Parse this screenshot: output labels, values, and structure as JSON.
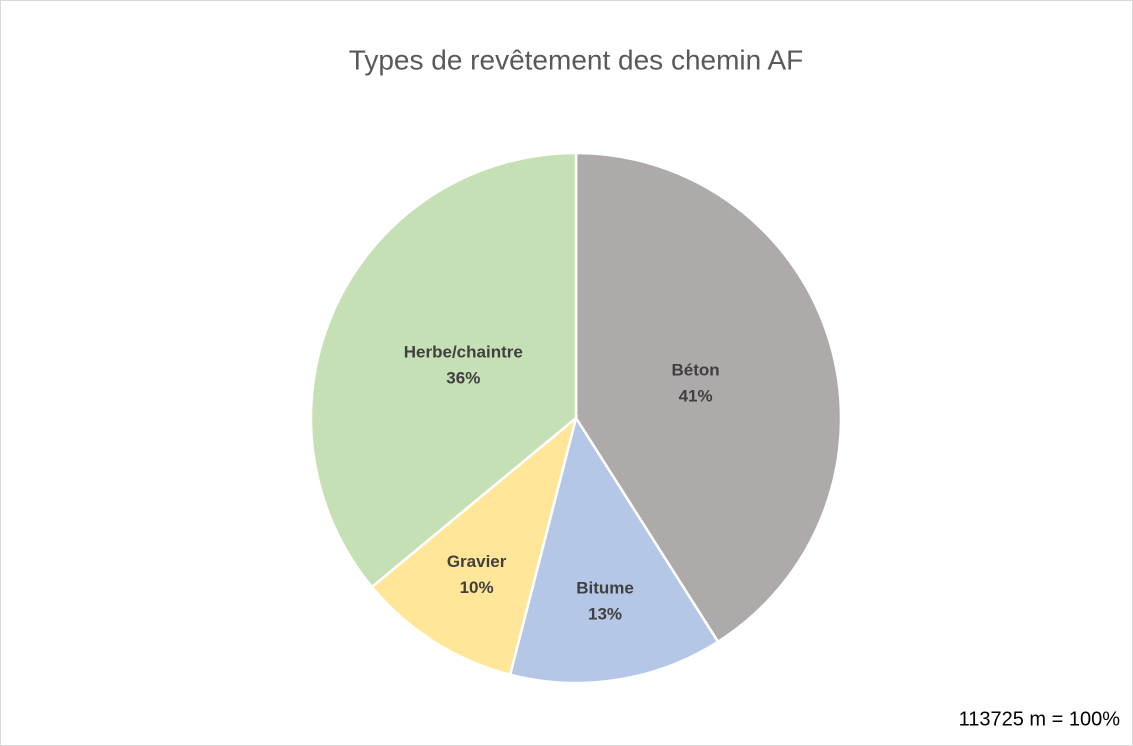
{
  "chart_data": {
    "type": "pie",
    "title": "Types de revêtement des chemin AF",
    "categories": [
      "Béton",
      "Bitume",
      "Gravier",
      "Herbe/chaintre"
    ],
    "values": [
      41,
      13,
      10,
      36
    ],
    "value_labels": [
      "41%",
      "13%",
      "10%",
      "36%"
    ],
    "colors": [
      "#aeaaaa",
      "#b4c7e7",
      "#ffe699",
      "#c5e0b4"
    ],
    "annotation": "113725 m = 100%"
  }
}
